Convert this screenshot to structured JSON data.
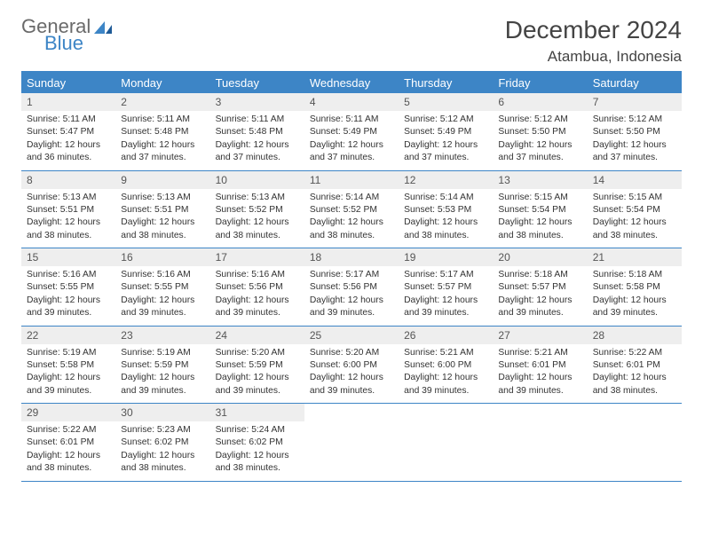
{
  "branding": {
    "word1": "General",
    "word2": "Blue"
  },
  "title": "December 2024",
  "location": "Atambua, Indonesia",
  "colors": {
    "accent": "#3d85c6",
    "row_alt": "#eeeeee"
  },
  "daysOfWeek": [
    "Sunday",
    "Monday",
    "Tuesday",
    "Wednesday",
    "Thursday",
    "Friday",
    "Saturday"
  ],
  "weeks": [
    [
      {
        "n": "1",
        "sr": "Sunrise: 5:11 AM",
        "ss": "Sunset: 5:47 PM",
        "dl1": "Daylight: 12 hours",
        "dl2": "and 36 minutes."
      },
      {
        "n": "2",
        "sr": "Sunrise: 5:11 AM",
        "ss": "Sunset: 5:48 PM",
        "dl1": "Daylight: 12 hours",
        "dl2": "and 37 minutes."
      },
      {
        "n": "3",
        "sr": "Sunrise: 5:11 AM",
        "ss": "Sunset: 5:48 PM",
        "dl1": "Daylight: 12 hours",
        "dl2": "and 37 minutes."
      },
      {
        "n": "4",
        "sr": "Sunrise: 5:11 AM",
        "ss": "Sunset: 5:49 PM",
        "dl1": "Daylight: 12 hours",
        "dl2": "and 37 minutes."
      },
      {
        "n": "5",
        "sr": "Sunrise: 5:12 AM",
        "ss": "Sunset: 5:49 PM",
        "dl1": "Daylight: 12 hours",
        "dl2": "and 37 minutes."
      },
      {
        "n": "6",
        "sr": "Sunrise: 5:12 AM",
        "ss": "Sunset: 5:50 PM",
        "dl1": "Daylight: 12 hours",
        "dl2": "and 37 minutes."
      },
      {
        "n": "7",
        "sr": "Sunrise: 5:12 AM",
        "ss": "Sunset: 5:50 PM",
        "dl1": "Daylight: 12 hours",
        "dl2": "and 37 minutes."
      }
    ],
    [
      {
        "n": "8",
        "sr": "Sunrise: 5:13 AM",
        "ss": "Sunset: 5:51 PM",
        "dl1": "Daylight: 12 hours",
        "dl2": "and 38 minutes."
      },
      {
        "n": "9",
        "sr": "Sunrise: 5:13 AM",
        "ss": "Sunset: 5:51 PM",
        "dl1": "Daylight: 12 hours",
        "dl2": "and 38 minutes."
      },
      {
        "n": "10",
        "sr": "Sunrise: 5:13 AM",
        "ss": "Sunset: 5:52 PM",
        "dl1": "Daylight: 12 hours",
        "dl2": "and 38 minutes."
      },
      {
        "n": "11",
        "sr": "Sunrise: 5:14 AM",
        "ss": "Sunset: 5:52 PM",
        "dl1": "Daylight: 12 hours",
        "dl2": "and 38 minutes."
      },
      {
        "n": "12",
        "sr": "Sunrise: 5:14 AM",
        "ss": "Sunset: 5:53 PM",
        "dl1": "Daylight: 12 hours",
        "dl2": "and 38 minutes."
      },
      {
        "n": "13",
        "sr": "Sunrise: 5:15 AM",
        "ss": "Sunset: 5:54 PM",
        "dl1": "Daylight: 12 hours",
        "dl2": "and 38 minutes."
      },
      {
        "n": "14",
        "sr": "Sunrise: 5:15 AM",
        "ss": "Sunset: 5:54 PM",
        "dl1": "Daylight: 12 hours",
        "dl2": "and 38 minutes."
      }
    ],
    [
      {
        "n": "15",
        "sr": "Sunrise: 5:16 AM",
        "ss": "Sunset: 5:55 PM",
        "dl1": "Daylight: 12 hours",
        "dl2": "and 39 minutes."
      },
      {
        "n": "16",
        "sr": "Sunrise: 5:16 AM",
        "ss": "Sunset: 5:55 PM",
        "dl1": "Daylight: 12 hours",
        "dl2": "and 39 minutes."
      },
      {
        "n": "17",
        "sr": "Sunrise: 5:16 AM",
        "ss": "Sunset: 5:56 PM",
        "dl1": "Daylight: 12 hours",
        "dl2": "and 39 minutes."
      },
      {
        "n": "18",
        "sr": "Sunrise: 5:17 AM",
        "ss": "Sunset: 5:56 PM",
        "dl1": "Daylight: 12 hours",
        "dl2": "and 39 minutes."
      },
      {
        "n": "19",
        "sr": "Sunrise: 5:17 AM",
        "ss": "Sunset: 5:57 PM",
        "dl1": "Daylight: 12 hours",
        "dl2": "and 39 minutes."
      },
      {
        "n": "20",
        "sr": "Sunrise: 5:18 AM",
        "ss": "Sunset: 5:57 PM",
        "dl1": "Daylight: 12 hours",
        "dl2": "and 39 minutes."
      },
      {
        "n": "21",
        "sr": "Sunrise: 5:18 AM",
        "ss": "Sunset: 5:58 PM",
        "dl1": "Daylight: 12 hours",
        "dl2": "and 39 minutes."
      }
    ],
    [
      {
        "n": "22",
        "sr": "Sunrise: 5:19 AM",
        "ss": "Sunset: 5:58 PM",
        "dl1": "Daylight: 12 hours",
        "dl2": "and 39 minutes."
      },
      {
        "n": "23",
        "sr": "Sunrise: 5:19 AM",
        "ss": "Sunset: 5:59 PM",
        "dl1": "Daylight: 12 hours",
        "dl2": "and 39 minutes."
      },
      {
        "n": "24",
        "sr": "Sunrise: 5:20 AM",
        "ss": "Sunset: 5:59 PM",
        "dl1": "Daylight: 12 hours",
        "dl2": "and 39 minutes."
      },
      {
        "n": "25",
        "sr": "Sunrise: 5:20 AM",
        "ss": "Sunset: 6:00 PM",
        "dl1": "Daylight: 12 hours",
        "dl2": "and 39 minutes."
      },
      {
        "n": "26",
        "sr": "Sunrise: 5:21 AM",
        "ss": "Sunset: 6:00 PM",
        "dl1": "Daylight: 12 hours",
        "dl2": "and 39 minutes."
      },
      {
        "n": "27",
        "sr": "Sunrise: 5:21 AM",
        "ss": "Sunset: 6:01 PM",
        "dl1": "Daylight: 12 hours",
        "dl2": "and 39 minutes."
      },
      {
        "n": "28",
        "sr": "Sunrise: 5:22 AM",
        "ss": "Sunset: 6:01 PM",
        "dl1": "Daylight: 12 hours",
        "dl2": "and 38 minutes."
      }
    ],
    [
      {
        "n": "29",
        "sr": "Sunrise: 5:22 AM",
        "ss": "Sunset: 6:01 PM",
        "dl1": "Daylight: 12 hours",
        "dl2": "and 38 minutes."
      },
      {
        "n": "30",
        "sr": "Sunrise: 5:23 AM",
        "ss": "Sunset: 6:02 PM",
        "dl1": "Daylight: 12 hours",
        "dl2": "and 38 minutes."
      },
      {
        "n": "31",
        "sr": "Sunrise: 5:24 AM",
        "ss": "Sunset: 6:02 PM",
        "dl1": "Daylight: 12 hours",
        "dl2": "and 38 minutes."
      },
      {
        "empty": true
      },
      {
        "empty": true
      },
      {
        "empty": true
      },
      {
        "empty": true
      }
    ]
  ]
}
